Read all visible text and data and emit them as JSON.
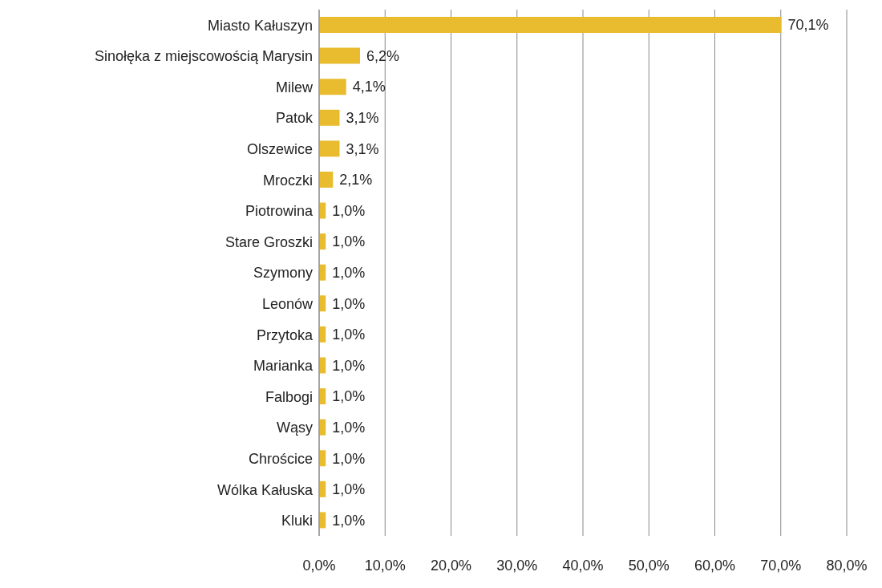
{
  "chart_data": {
    "type": "bar",
    "orientation": "horizontal",
    "categories": [
      "Miasto Kałuszyn",
      "Sinołęka z miejscowością Marysin",
      "Milew",
      "Patok",
      "Olszewice",
      "Mroczki",
      "Piotrowina",
      "Stare Groszki",
      "Szymony",
      "Leonów",
      "Przytoka",
      "Marianka",
      "Falbogi",
      "Wąsy",
      "Chrościce",
      "Wólka Kałuska",
      "Kluki"
    ],
    "values": [
      70.1,
      6.2,
      4.1,
      3.1,
      3.1,
      2.1,
      1.0,
      1.0,
      1.0,
      1.0,
      1.0,
      1.0,
      1.0,
      1.0,
      1.0,
      1.0,
      1.0
    ],
    "value_labels": [
      "70,1%",
      "6,2%",
      "4,1%",
      "3,1%",
      "3,1%",
      "2,1%",
      "1,0%",
      "1,0%",
      "1,0%",
      "1,0%",
      "1,0%",
      "1,0%",
      "1,0%",
      "1,0%",
      "1,0%",
      "1,0%",
      "1,0%"
    ],
    "color": "#e8bc2e",
    "xlim": [
      0,
      80
    ],
    "xticks": [
      {
        "value": 0,
        "label": "0,0%"
      },
      {
        "value": 10,
        "label": "10,0%"
      },
      {
        "value": 20,
        "label": "20,0%"
      },
      {
        "value": 30,
        "label": "30,0%"
      },
      {
        "value": 40,
        "label": "40,0%"
      },
      {
        "value": 50,
        "label": "50,0%"
      },
      {
        "value": 60,
        "label": "60,0%"
      },
      {
        "value": 70,
        "label": "70,0%"
      },
      {
        "value": 80,
        "label": "80,0%"
      }
    ],
    "grid": "x"
  }
}
